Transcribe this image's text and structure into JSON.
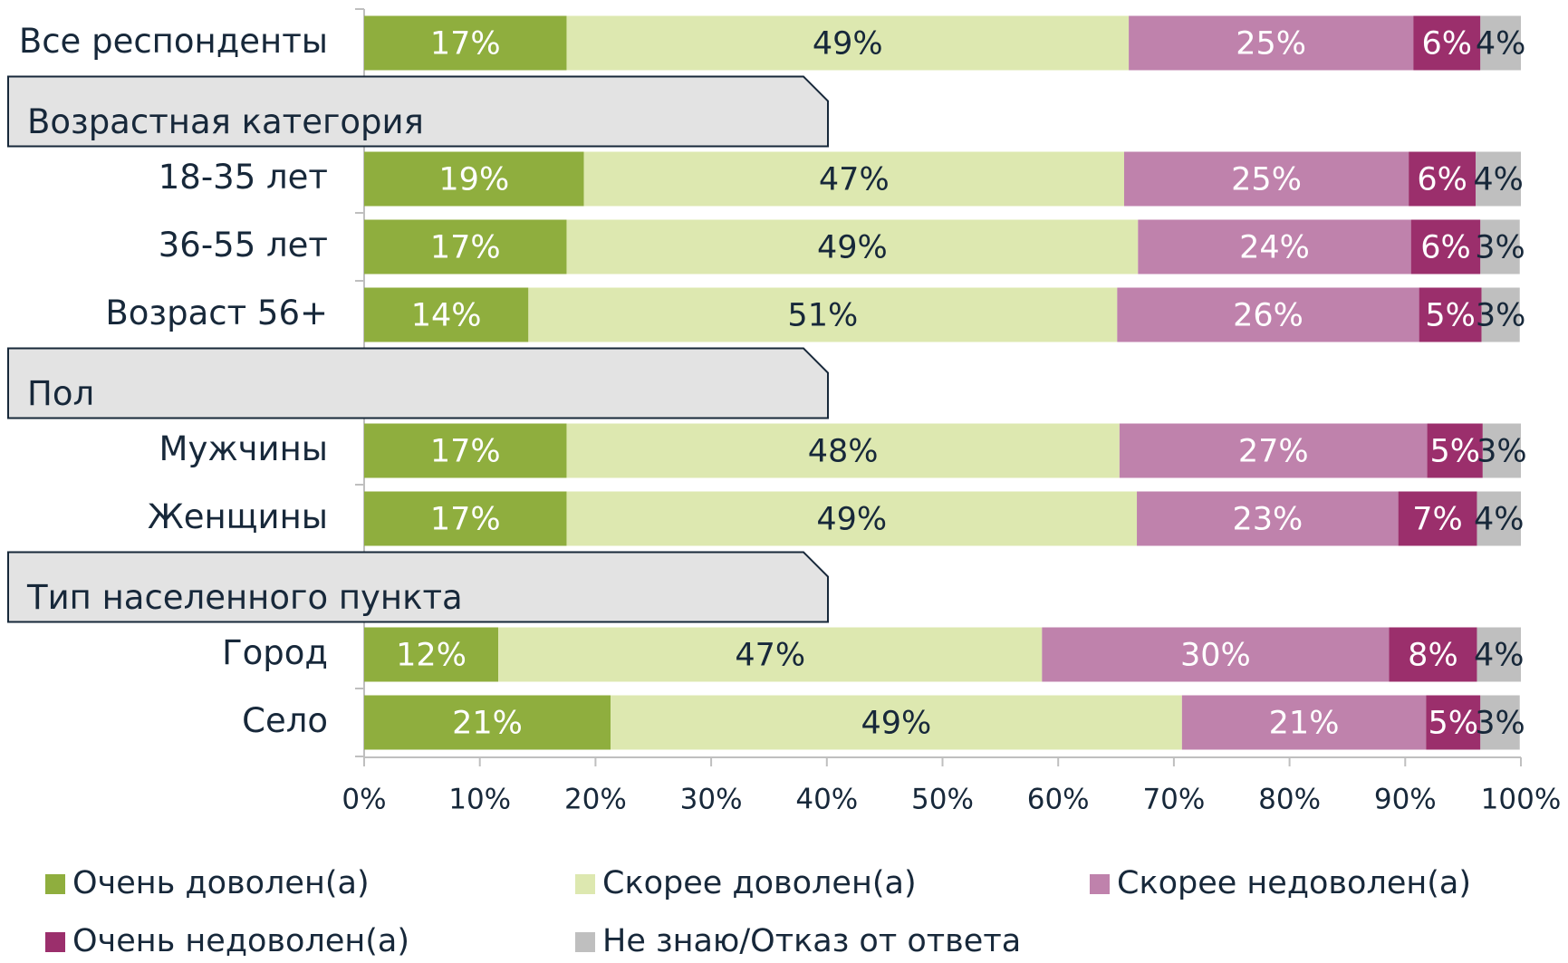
{
  "chart_data": {
    "type": "stacked-bar-horizontal",
    "categories": [
      "Все респонденты",
      "Возрастная категория",
      "18-35 лет",
      "36-55 лет",
      "Возраст 56+",
      "Пол",
      "Мужчины",
      "Женщины",
      "Тип населенного пункта",
      "Город",
      "Село"
    ],
    "series": [
      {
        "name": "Очень доволен(а)",
        "color": "#8fae3e",
        "values": [
          17.5,
          null,
          19.0,
          17.5,
          14.2,
          null,
          17.5,
          17.5,
          null,
          11.6,
          21.3
        ],
        "value_labels": [
          "17%",
          null,
          "19%",
          "17%",
          "14%",
          null,
          "17%",
          "17%",
          null,
          "12%",
          "21%"
        ]
      },
      {
        "name": "Скорее доволен(а)",
        "color": "#dde8b0",
        "values": [
          48.6,
          null,
          46.7,
          49.4,
          50.9,
          null,
          47.8,
          49.3,
          null,
          47.0,
          49.4
        ],
        "value_labels": [
          "49%",
          null,
          "47%",
          "49%",
          "51%",
          null,
          "48%",
          "49%",
          null,
          "47%",
          "49%"
        ]
      },
      {
        "name": "Скорее недоволен(а)",
        "color": "#bf82ac",
        "values": [
          24.6,
          null,
          24.6,
          23.6,
          26.1,
          null,
          26.6,
          22.6,
          null,
          30.0,
          21.1
        ],
        "value_labels": [
          "25%",
          null,
          "25%",
          "24%",
          "26%",
          null,
          "27%",
          "23%",
          null,
          "30%",
          "21%"
        ]
      },
      {
        "name": "Очень недоволен(а)",
        "color": "#9b2f6c",
        "values": [
          5.8,
          null,
          5.8,
          6.0,
          5.4,
          null,
          4.8,
          6.8,
          null,
          7.6,
          4.7
        ],
        "value_labels": [
          "6%",
          null,
          "6%",
          "6%",
          "5%",
          null,
          "5%",
          "7%",
          null,
          "8%",
          "5%"
        ]
      },
      {
        "name": "Не знаю/Отказ от ответа",
        "color": "#bfbfbf",
        "values": [
          3.5,
          null,
          3.9,
          3.4,
          3.3,
          null,
          3.3,
          3.8,
          null,
          3.8,
          3.4
        ],
        "value_labels": [
          "4%",
          null,
          "4%",
          "3%",
          "3%",
          null,
          "3%",
          "4%",
          null,
          "4%",
          "3%"
        ]
      }
    ],
    "xlim": [
      0,
      100
    ],
    "xticks": [
      {
        "value": 0,
        "label": "0%"
      },
      {
        "value": 10,
        "label": "10%"
      },
      {
        "value": 20,
        "label": "20%"
      },
      {
        "value": 30,
        "label": "30%"
      },
      {
        "value": 40,
        "label": "40%"
      },
      {
        "value": 50,
        "label": "50%"
      },
      {
        "value": 60,
        "label": "60%"
      },
      {
        "value": 70,
        "label": "70%"
      },
      {
        "value": 80,
        "label": "80%"
      },
      {
        "value": 90,
        "label": "90%"
      },
      {
        "value": 100,
        "label": "100%"
      }
    ]
  }
}
